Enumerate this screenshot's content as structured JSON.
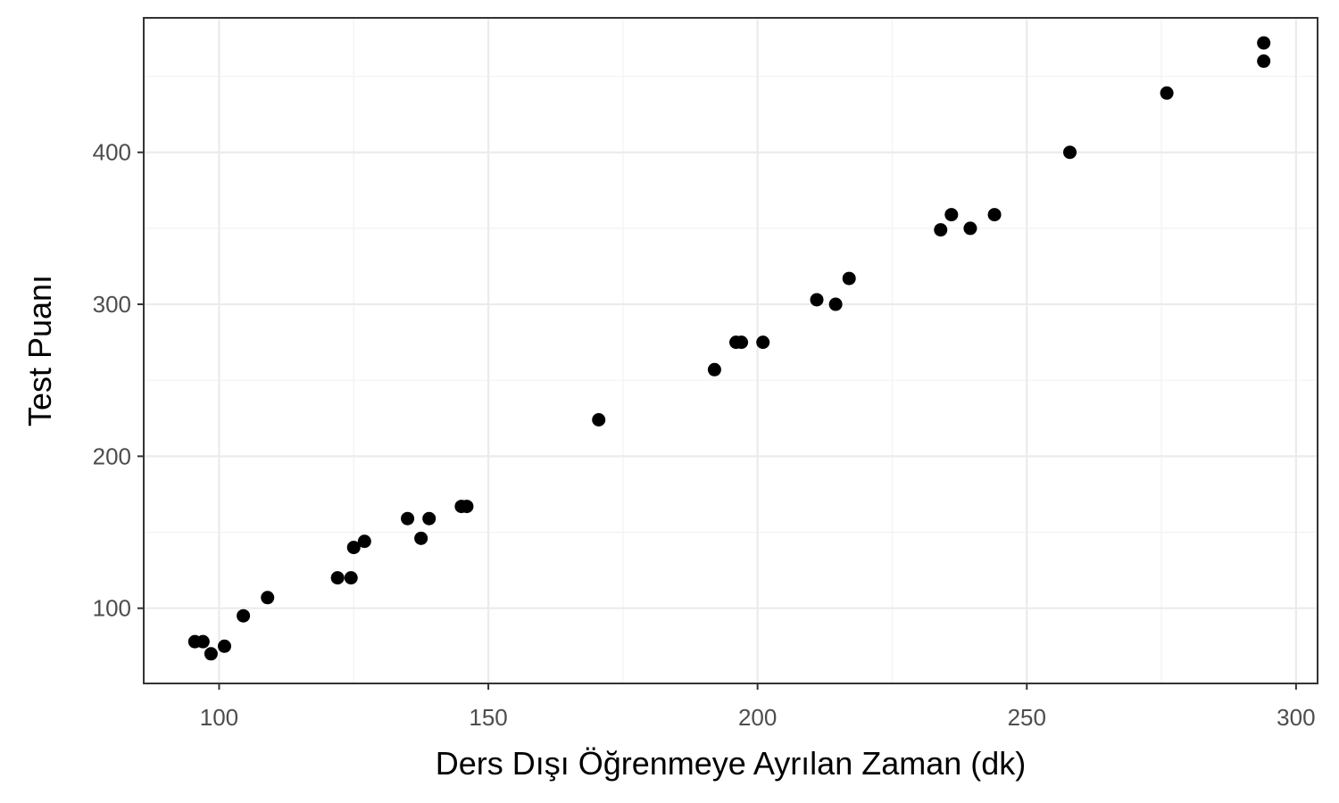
{
  "chart_data": {
    "type": "scatter",
    "xlabel": "Ders Dışı Öğrenmeye Ayrılan Zaman (dk)",
    "ylabel": "Test Puanı",
    "xlim": [
      86,
      304
    ],
    "ylim": [
      50.5,
      488.5
    ],
    "x_ticks": [
      100,
      150,
      200,
      250,
      300
    ],
    "x_tick_labels": [
      "100",
      "150",
      "200",
      "250",
      "300"
    ],
    "y_ticks": [
      100,
      200,
      300,
      400
    ],
    "y_tick_labels": [
      "100",
      "200",
      "300",
      "400"
    ],
    "x_minor_ticks": [
      125,
      175,
      225,
      275
    ],
    "y_minor_ticks": [
      150,
      250,
      350,
      450
    ],
    "grid": true,
    "point_color": "#000000",
    "points": [
      {
        "x": 95.5,
        "y": 78
      },
      {
        "x": 97,
        "y": 78
      },
      {
        "x": 98.5,
        "y": 70
      },
      {
        "x": 101,
        "y": 75
      },
      {
        "x": 104.5,
        "y": 95
      },
      {
        "x": 109,
        "y": 107
      },
      {
        "x": 122,
        "y": 120
      },
      {
        "x": 124.5,
        "y": 120
      },
      {
        "x": 125,
        "y": 140
      },
      {
        "x": 127,
        "y": 144
      },
      {
        "x": 135,
        "y": 159
      },
      {
        "x": 137.5,
        "y": 146
      },
      {
        "x": 139,
        "y": 159
      },
      {
        "x": 145,
        "y": 167
      },
      {
        "x": 146,
        "y": 167
      },
      {
        "x": 170.5,
        "y": 224
      },
      {
        "x": 192,
        "y": 257
      },
      {
        "x": 196,
        "y": 275
      },
      {
        "x": 197,
        "y": 275
      },
      {
        "x": 201,
        "y": 275
      },
      {
        "x": 211,
        "y": 303
      },
      {
        "x": 214.5,
        "y": 300
      },
      {
        "x": 217,
        "y": 317
      },
      {
        "x": 234,
        "y": 349
      },
      {
        "x": 236,
        "y": 359
      },
      {
        "x": 239.5,
        "y": 350
      },
      {
        "x": 244,
        "y": 359
      },
      {
        "x": 258,
        "y": 400
      },
      {
        "x": 276,
        "y": 439
      },
      {
        "x": 294,
        "y": 460
      },
      {
        "x": 294,
        "y": 472
      }
    ]
  }
}
